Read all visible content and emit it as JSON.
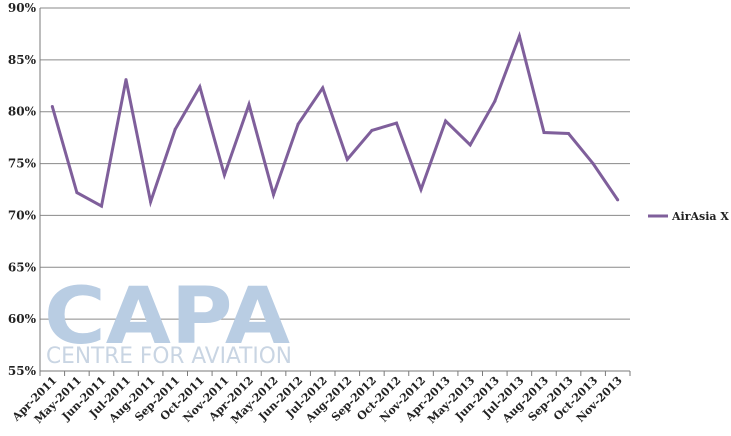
{
  "chart_data": {
    "type": "line",
    "categories": [
      "Apr-2011",
      "May-2011",
      "Jun-2011",
      "Jul-2011",
      "Aug-2011",
      "Sep-2011",
      "Oct-2011",
      "Nov-2011",
      "Apr-2012",
      "May-2012",
      "Jun-2012",
      "Jul-2012",
      "Aug-2012",
      "Sep-2012",
      "Oct-2012",
      "Nov-2012",
      "Apr-2013",
      "May-2013",
      "Jun-2013",
      "Jul-2013",
      "Aug-2013",
      "Sep-2013",
      "Oct-2013",
      "Nov-2013"
    ],
    "series": [
      {
        "name": "AirAsia X",
        "values": [
          80.5,
          72.2,
          70.9,
          83.1,
          71.3,
          78.3,
          82.4,
          73.9,
          80.7,
          72.0,
          78.8,
          82.3,
          75.4,
          78.2,
          78.9,
          72.5,
          79.1,
          76.8,
          81.0,
          87.3,
          78.0,
          77.9,
          75.0,
          71.5
        ]
      }
    ],
    "yticks": [
      "90%",
      "85%",
      "80%",
      "75%",
      "70%",
      "65%",
      "60%",
      "55%"
    ],
    "ylim": [
      55,
      90
    ],
    "title": "",
    "xlabel": "",
    "ylabel": "",
    "grid": true,
    "legend_position": "right"
  },
  "colors": {
    "line": "#7f5f9b",
    "grid": "#8a8a8a",
    "axis": "#7a7a7a"
  },
  "watermark": {
    "logo": "CAPA",
    "subtitle": "CENTRE FOR AVIATION"
  }
}
